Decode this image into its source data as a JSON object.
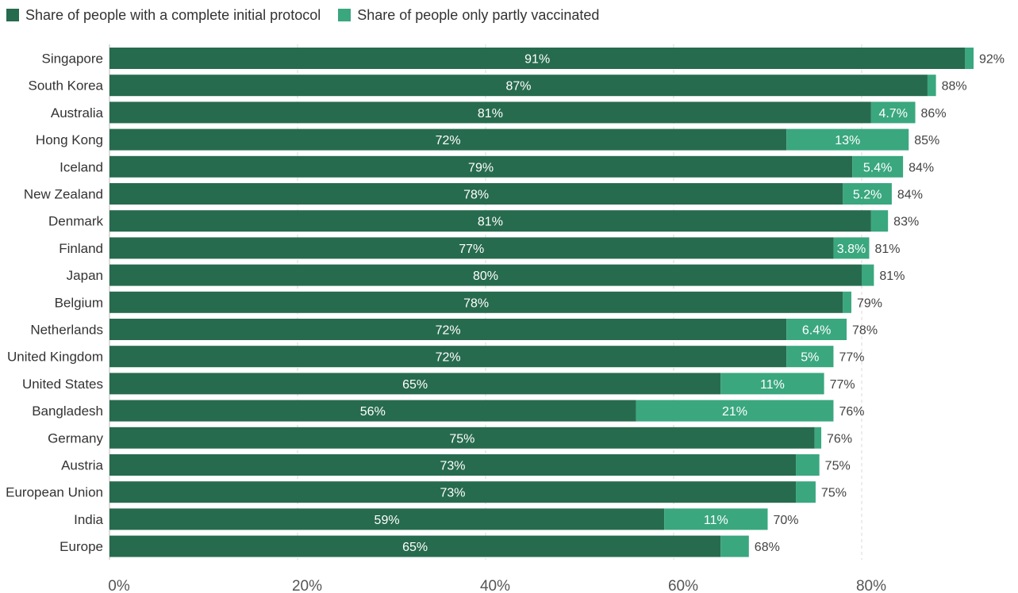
{
  "legend": [
    {
      "label": "Share of people with a complete initial protocol",
      "color": "#276b4e"
    },
    {
      "label": "Share of people only partly vaccinated",
      "color": "#3aa77f"
    }
  ],
  "chart_data": {
    "type": "bar",
    "orientation": "horizontal",
    "stacked": true,
    "title": "",
    "xlabel": "",
    "ylabel": "",
    "xlim": [
      0,
      92
    ],
    "x_ticks": [
      "0%",
      "20%",
      "40%",
      "60%",
      "80%"
    ],
    "x_tick_values": [
      0,
      20,
      40,
      60,
      80
    ],
    "grid": "vertical dashed",
    "legend_position": "top-left",
    "categories": [
      "Singapore",
      "South Korea",
      "Australia",
      "Hong Kong",
      "Iceland",
      "New Zealand",
      "Denmark",
      "Finland",
      "Japan",
      "Belgium",
      "Netherlands",
      "United Kingdom",
      "United States",
      "Bangladesh",
      "Germany",
      "Austria",
      "European Union",
      "India",
      "Europe"
    ],
    "series": [
      {
        "name": "Share of people with a complete initial protocol",
        "color": "#276b4e",
        "values": [
          91,
          87,
          81,
          72,
          79,
          78,
          81,
          77,
          80,
          78,
          72,
          72,
          65,
          56,
          75,
          73,
          73,
          59,
          65
        ],
        "labels": [
          "91%",
          "87%",
          "81%",
          "72%",
          "79%",
          "78%",
          "81%",
          "77%",
          "80%",
          "78%",
          "72%",
          "72%",
          "65%",
          "56%",
          "75%",
          "73%",
          "73%",
          "59%",
          "65%"
        ]
      },
      {
        "name": "Share of people only partly vaccinated",
        "color": "#3aa77f",
        "values": [
          0.9,
          0.9,
          4.7,
          13,
          5.4,
          5.2,
          1.8,
          3.8,
          1.3,
          0.9,
          6.4,
          5,
          11,
          21,
          0.7,
          2.5,
          2.1,
          11,
          3
        ],
        "labels": [
          "",
          "",
          "4.7%",
          "13%",
          "5.4%",
          "5.2%",
          "",
          "3.8%",
          "",
          "",
          "6.4%",
          "5%",
          "11%",
          "21%",
          "",
          "",
          "",
          "11%",
          ""
        ]
      }
    ],
    "totals": [
      "92%",
      "88%",
      "86%",
      "85%",
      "84%",
      "84%",
      "83%",
      "81%",
      "81%",
      "79%",
      "78%",
      "77%",
      "77%",
      "76%",
      "76%",
      "75%",
      "75%",
      "70%",
      "68%"
    ]
  }
}
